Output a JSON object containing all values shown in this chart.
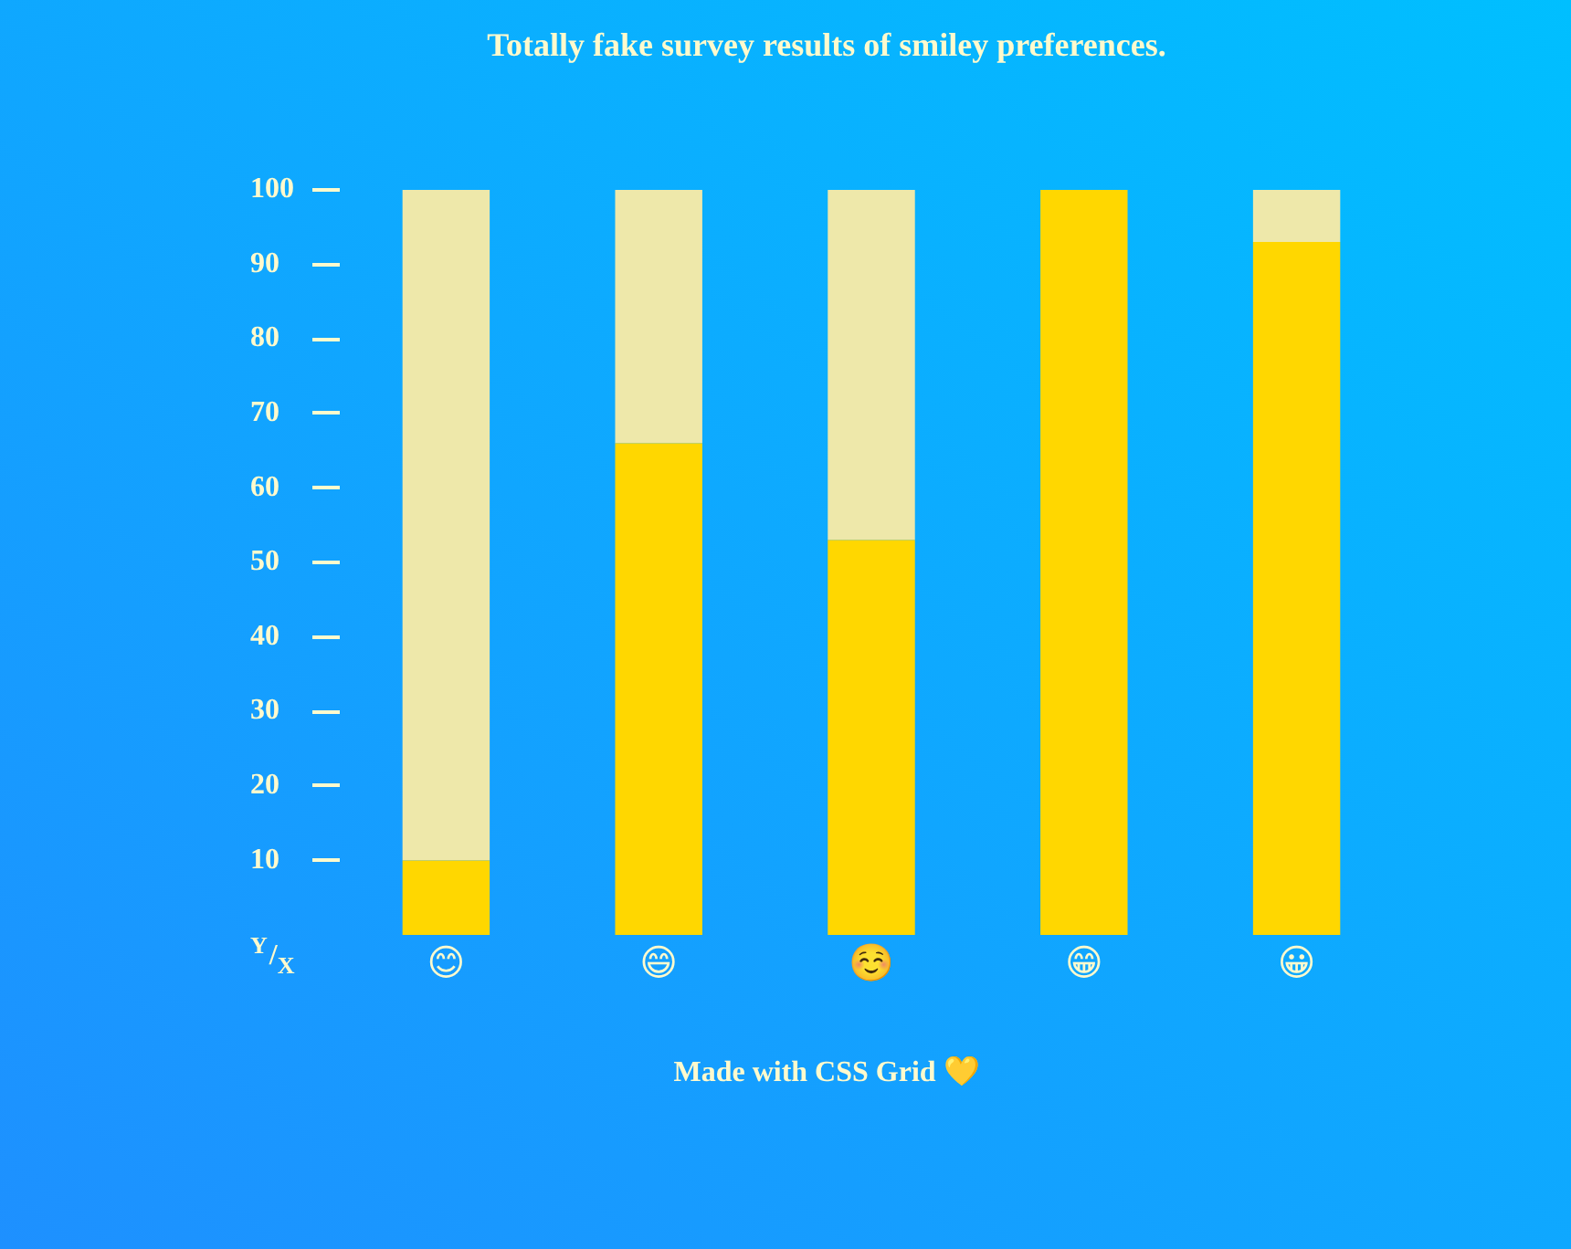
{
  "chart_data": {
    "type": "bar",
    "title": "Totally fake survey results of smiley preferences.",
    "categories": [
      "😊",
      "😄",
      "☺️",
      "😁",
      "😀"
    ],
    "series": [
      {
        "color": "#ffd700",
        "values": [
          10,
          66,
          53,
          100,
          93
        ]
      },
      {
        "color": "#eee8aa",
        "values": [
          90,
          34,
          47,
          0,
          7
        ]
      }
    ],
    "stacked": true,
    "ylim": [
      0,
      100
    ],
    "yticks": [
      10,
      20,
      30,
      40,
      50,
      60,
      70,
      80,
      90,
      100
    ],
    "annotations": [
      "$^{Y}$/$_{X}$",
      "Made with CSS Grid 💛"
    ]
  }
}
